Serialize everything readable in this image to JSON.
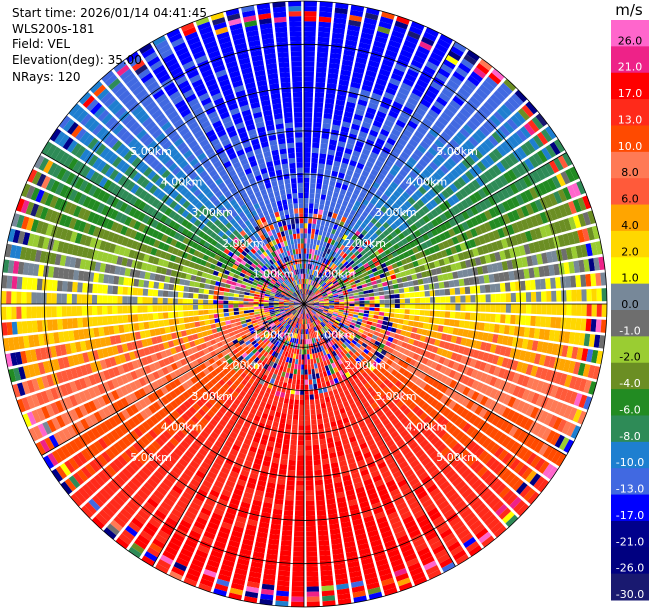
{
  "header": {
    "start_time": "Start time: 2026/01/14 04:41:45",
    "instrument": "WLS200s-181",
    "field": "Field: VEL",
    "elevation": "Elevation(deg): 35.00",
    "nrays": "NRays: 120"
  },
  "chart_data": {
    "type": "heatmap",
    "projection": "polar-ppi",
    "field": "VEL",
    "units": "m/s",
    "nrays": 120,
    "elevation_deg": 35.0,
    "max_range_km": 7.0,
    "range_rings_km": [
      1,
      2,
      3,
      4,
      5,
      6,
      7
    ],
    "ring_labels": [
      "1.00km",
      "2.00km",
      "3.00km",
      "4.00km",
      "5.00km"
    ],
    "azimuth_spokes_deg": [
      0,
      30,
      60,
      90,
      120,
      150,
      180,
      210,
      240,
      270,
      300,
      330
    ],
    "wind_pattern": {
      "positive_toward_deg": 180,
      "peak_velocity_ms": 13,
      "outer_peak_velocity_ms": 18,
      "offset_ms": 2,
      "noise_range_km": 2.2
    },
    "colorbar": {
      "title": "m/s",
      "tick_labels": [
        "26.0",
        "21.0",
        "17.0",
        "13.0",
        "10.0",
        "8.0",
        "6.0",
        "4.0",
        "2.0",
        "1.0",
        "0.0",
        "-1.0",
        "-2.0",
        "-4.0",
        "-6.0",
        "-8.0",
        "-10.0",
        "-13.0",
        "-17.0",
        "-21.0",
        "-26.0",
        "-30.0"
      ],
      "bounds": [
        30,
        26,
        21,
        17,
        13,
        10,
        8,
        6,
        4,
        2,
        1,
        0,
        -1,
        -2,
        -4,
        -6,
        -8,
        -10,
        -13,
        -17,
        -21,
        -26,
        -30
      ],
      "colors": [
        "#ff66cc",
        "#ee2288",
        "#ff0000",
        "#ff2a1a",
        "#ff4a00",
        "#ff7a55",
        "#ff5a3a",
        "#ffa500",
        "#ffd700",
        "#ffff00",
        "#778899",
        "#6e6e6e",
        "#9acd32",
        "#6b8e23",
        "#228b22",
        "#2e8b57",
        "#1e7fd0",
        "#4169e1",
        "#0000ff",
        "#00008b",
        "#000080",
        "#191970"
      ]
    }
  }
}
